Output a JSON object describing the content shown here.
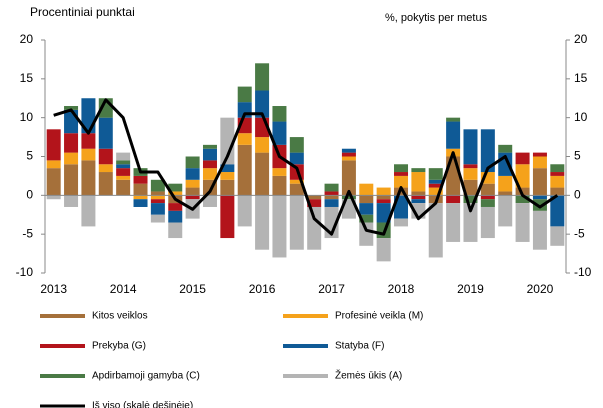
{
  "chart_data": {
    "type": "stacked_bar_line",
    "y_label": "Procentiniai punktai",
    "y2_label": "%, pokytis per metus",
    "categories": [
      "2013",
      null,
      null,
      null,
      "2014",
      null,
      null,
      null,
      "2015",
      null,
      null,
      null,
      "2016",
      null,
      null,
      null,
      "2017",
      null,
      null,
      null,
      "2018",
      null,
      null,
      null,
      "2019",
      null,
      null,
      null,
      "2020",
      null
    ],
    "series": [
      {
        "name": "Kitos veiklos",
        "color": "#a5703a",
        "values": [
          3.5,
          4,
          4.5,
          3,
          2,
          1.5,
          0.5,
          -1,
          1,
          2,
          2,
          6.5,
          5.5,
          2.5,
          1.5,
          -0.5,
          -0.5,
          4.5,
          -1,
          -0.5,
          1,
          0.5,
          -1,
          5,
          2,
          1.5,
          0.5,
          1,
          3.5,
          1
        ]
      },
      {
        "name": "Profesinė veikla (M)",
        "color": "#f5a21b",
        "values": [
          1,
          1.5,
          1.5,
          1,
          0.5,
          -0.5,
          -0.5,
          0.5,
          1,
          1.5,
          1,
          1.5,
          2,
          1,
          0.5,
          0,
          0,
          0.5,
          1.5,
          1,
          1.5,
          2.5,
          1,
          1,
          1.5,
          1.5,
          2,
          3,
          1.5,
          1.5
        ]
      },
      {
        "name": "Prekyba (G)",
        "color": "#b3141b",
        "values": [
          4,
          2.5,
          2,
          2,
          1,
          1,
          -0.5,
          -1,
          -0.5,
          1,
          -5.5,
          2,
          2.5,
          3,
          2,
          -1,
          0.5,
          0.5,
          0,
          -0.5,
          0.5,
          -0.5,
          0.5,
          -1,
          0.5,
          -0.5,
          0,
          1.5,
          0.5,
          0.5
        ]
      },
      {
        "name": "Statyba (F)",
        "color": "#0f5a96",
        "values": [
          0,
          3,
          4.5,
          4,
          0.5,
          -1,
          -1.5,
          -1.5,
          1.5,
          1.5,
          1,
          2,
          3.5,
          3,
          1.5,
          0,
          -1,
          0.5,
          -1.5,
          -2.5,
          -3,
          -0.5,
          0.5,
          3.5,
          4.5,
          5.5,
          3,
          0,
          -0.5,
          -4
        ]
      },
      {
        "name": "Apdirbamoji gamyba (C)",
        "color": "#4a7a45",
        "values": [
          0,
          0.5,
          0,
          2.5,
          0.5,
          1,
          1.5,
          1,
          1.5,
          0.5,
          0,
          2,
          3.5,
          2,
          2,
          0,
          1,
          -0.5,
          -1,
          -2,
          1,
          0.5,
          1.5,
          0.5,
          -1,
          -1,
          1,
          -1,
          -1.5,
          1
        ]
      },
      {
        "name": "Žemės ūkis (A)",
        "color": "#b4b4b4",
        "values": [
          -0.5,
          -1.5,
          -4,
          0,
          1,
          0,
          -1,
          -2,
          -2.5,
          -1.5,
          6,
          -4,
          -7,
          -8,
          -7,
          -5.5,
          -4,
          -2.5,
          -3,
          -3,
          -1,
          -2,
          -7,
          -5,
          -5,
          -4,
          -4,
          -5,
          -5,
          -2.5
        ]
      },
      {
        "name": "Iš viso (skalė dešinėje)",
        "color": "#000000",
        "axis": "y2",
        "type": "line",
        "values": [
          10.3,
          11,
          8,
          12.3,
          10,
          3,
          3,
          -0.5,
          -1.8,
          0.5,
          5,
          10.5,
          10.5,
          5,
          3.5,
          -3,
          -5,
          0.5,
          -4.5,
          -5,
          1,
          -3,
          -1,
          5.5,
          -2,
          3.5,
          5,
          0,
          -1.5,
          0
        ]
      }
    ],
    "ylim": [
      -10,
      20
    ],
    "yticks": [
      -10,
      -5,
      0,
      5,
      10,
      15,
      20
    ],
    "y2lim": [
      -10,
      20
    ],
    "y2ticks": [
      -10,
      -5,
      0,
      5,
      10,
      15,
      20
    ]
  }
}
